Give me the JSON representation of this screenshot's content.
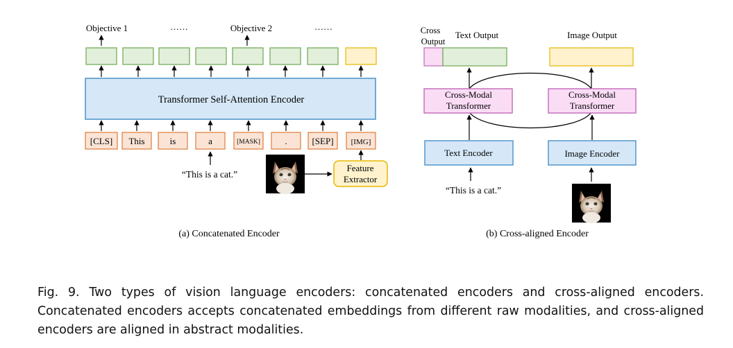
{
  "panel_a": {
    "top_labels": [
      "Objective 1",
      "……",
      "Objective 2",
      "……"
    ],
    "encoder_label": "Transformer Self-Attention Encoder",
    "tokens": [
      "[CLS]",
      "This",
      "is",
      "a",
      "[MASK]",
      ".",
      "[SEP]",
      "[IMG]"
    ],
    "input_text": "“This is a cat.”",
    "feature_extractor": [
      "Feature",
      "Extractor"
    ],
    "caption": "(a) Concatenated Encoder"
  },
  "panel_b": {
    "cross_output": [
      "Cross",
      "Output"
    ],
    "text_output": "Text Output",
    "image_output": "Image Output",
    "cross_modal": [
      "Cross-Modal",
      "Transformer"
    ],
    "text_encoder": "Text Encoder",
    "image_encoder": "Image Encoder",
    "input_text": "“This is a cat.”",
    "caption": "(b) Cross-aligned Encoder"
  },
  "figure_caption": "Fig. 9.  Two types of vision language encoders: concatenated encoders and cross-aligned encoders. Concatenated encoders accepts concatenated embeddings from different raw modalities, and cross-aligned encoders are aligned in abstract modalities.",
  "colors": {
    "green_fill": "#e2efda",
    "green_stroke": "#6aa84f",
    "yellow_fill": "#fff2cc",
    "yellow_stroke": "#e6b800",
    "blue_fill": "#d6e8f7",
    "blue_stroke": "#4a90c8",
    "orange_fill": "#fbe4d5",
    "orange_stroke": "#e07b39",
    "pink_fill": "#fadcf5",
    "pink_stroke": "#c06ab8"
  }
}
